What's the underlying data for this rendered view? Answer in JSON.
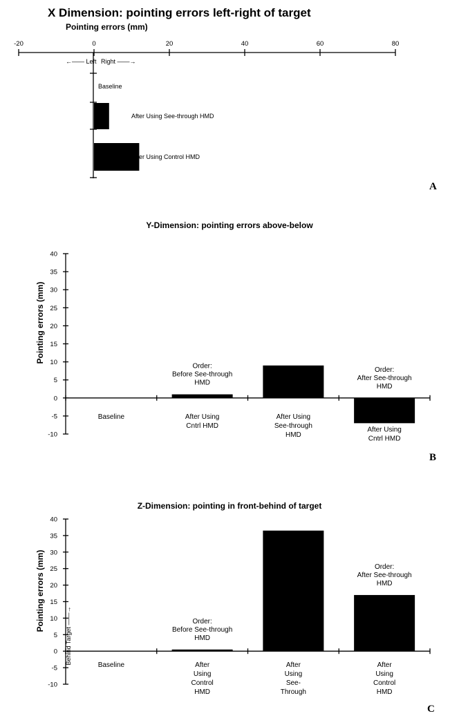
{
  "chart_data": [
    {
      "type": "bar",
      "orientation": "horizontal",
      "panel": "A",
      "title": "X Dimension: pointing errors left-right of target",
      "xlabel": "Pointing errors (mm)",
      "xlim": [
        -20,
        80
      ],
      "x_ticks": [
        "-20",
        "0",
        "20",
        "40",
        "60",
        "80"
      ],
      "direction_labels": {
        "left": "Left",
        "right": "Right"
      },
      "categories": [
        "Baseline",
        "After Using See-through  HMD",
        "After Using Control HMD"
      ],
      "values": [
        0,
        4,
        12
      ]
    },
    {
      "type": "bar",
      "panel": "B",
      "title": "Y-Dimension: pointing errors above-below",
      "ylabel": "Pointing errors (mm)",
      "ylim": [
        -10,
        40
      ],
      "y_ticks": [
        "-10",
        "-5",
        "0",
        "5",
        "10",
        "15",
        "20",
        "25",
        "30",
        "35",
        "40"
      ],
      "categories": [
        [
          "Baseline"
        ],
        [
          "After Using",
          "Cntrl HMD"
        ],
        [
          "After Using",
          "See-through",
          "HMD"
        ],
        [
          "After Using",
          "Cntrl HMD"
        ]
      ],
      "values": [
        0,
        1,
        9,
        -7
      ],
      "annotations": [
        {
          "text": [
            "Order:",
            "Before See-through",
            "HMD"
          ],
          "category_index": 1
        },
        {
          "text": [
            "Order:",
            "After See-through",
            "HMD"
          ],
          "category_index": 3
        }
      ]
    },
    {
      "type": "bar",
      "panel": "C",
      "title": "Z-Dimension: pointing in front-behind of target",
      "ylabel": "Pointing errors (mm)",
      "ylim": [
        -10,
        40
      ],
      "y_ticks": [
        "-10",
        "-5",
        "0",
        "5",
        "10",
        "15",
        "20",
        "25",
        "30",
        "35",
        "40"
      ],
      "side_label": "Behind Target",
      "categories": [
        [
          "Baseline"
        ],
        [
          "After",
          "Using",
          "Control",
          "HMD"
        ],
        [
          "After",
          "Using",
          "See-",
          "Through"
        ],
        [
          "After",
          "Using",
          "Control",
          "HMD"
        ]
      ],
      "values": [
        0,
        0.5,
        36.5,
        17
      ],
      "annotations": [
        {
          "text": [
            "Order:",
            "Before See-through",
            "HMD"
          ],
          "category_index": 1
        },
        {
          "text": [
            "Order:",
            "After See-through",
            "HMD"
          ],
          "category_index": 3
        }
      ]
    }
  ],
  "panel_letters": [
    "A",
    "B",
    "C"
  ]
}
